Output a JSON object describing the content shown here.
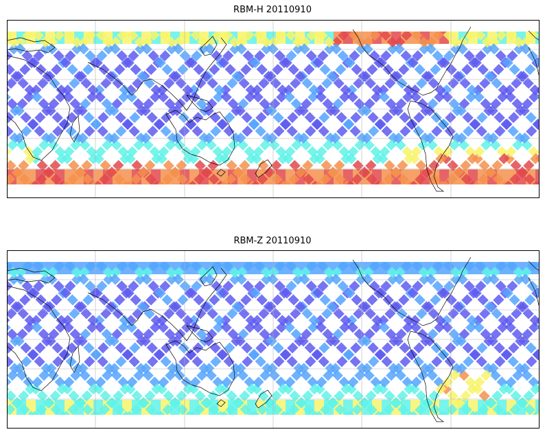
{
  "panels": [
    {
      "title": "RBM-H 20110910",
      "colormap": "jet",
      "swath_pattern": "crossing-orbit-tracks",
      "high_values_region": [
        "southern-high-latitudes",
        "northern-band-central",
        "south-pacific-east"
      ]
    },
    {
      "title": "RBM-Z 20110910",
      "colormap": "jet",
      "swath_pattern": "crossing-orbit-tracks",
      "high_values_region": [
        "south-atlantic-near-south-america",
        "southern-band"
      ]
    }
  ],
  "map": {
    "projection": "equirectangular",
    "central_longitude": 180,
    "gridlines": true,
    "coastlines": true
  },
  "colors": {
    "low": "#5e5cf0",
    "mid_low": "#55a5ff",
    "mid": "#60f2e8",
    "mid_high": "#f7f56a",
    "high": "#f5914c",
    "very_high": "#e2494e",
    "coast": "#000000",
    "grid": "#b0b0b0"
  }
}
